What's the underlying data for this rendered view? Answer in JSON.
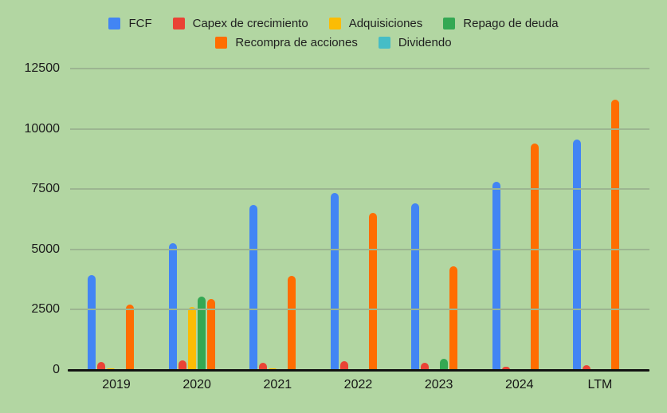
{
  "chart": {
    "background_color": "#B2D6A2",
    "gridline_color": "#9CB591",
    "axis_color": "#121212",
    "text_color": "#1f1f1f"
  },
  "chart_data": {
    "type": "bar",
    "title": "",
    "xlabel": "",
    "ylabel": "",
    "categories": [
      "2019",
      "2020",
      "2021",
      "2022",
      "2023",
      "2024",
      "LTM"
    ],
    "series": [
      {
        "name": "FCF",
        "color": "#4285F4",
        "values": [
          3950,
          5250,
          6850,
          7350,
          6900,
          7800,
          9550
        ]
      },
      {
        "name": "Capex de crecimiento",
        "color": "#EA4335",
        "values": [
          330,
          390,
          300,
          380,
          300,
          120,
          200
        ]
      },
      {
        "name": "Adquisiciones",
        "color": "#FBBC04",
        "values": [
          60,
          2600,
          80,
          0,
          0,
          0,
          0
        ]
      },
      {
        "name": "Repago de deuda",
        "color": "#34A853",
        "values": [
          0,
          3050,
          0,
          0,
          450,
          0,
          0
        ]
      },
      {
        "name": "Recompra de acciones",
        "color": "#FF6D01",
        "values": [
          2700,
          2950,
          3900,
          6500,
          4300,
          9400,
          11200
        ]
      },
      {
        "name": "Dividendo",
        "color": "#46BDC6",
        "values": [
          0,
          0,
          0,
          0,
          0,
          0,
          0
        ]
      }
    ],
    "ylim": [
      0,
      12500
    ],
    "yticks": [
      0,
      2500,
      5000,
      7500,
      10000,
      12500
    ],
    "grid": true,
    "legend_position": "top"
  }
}
